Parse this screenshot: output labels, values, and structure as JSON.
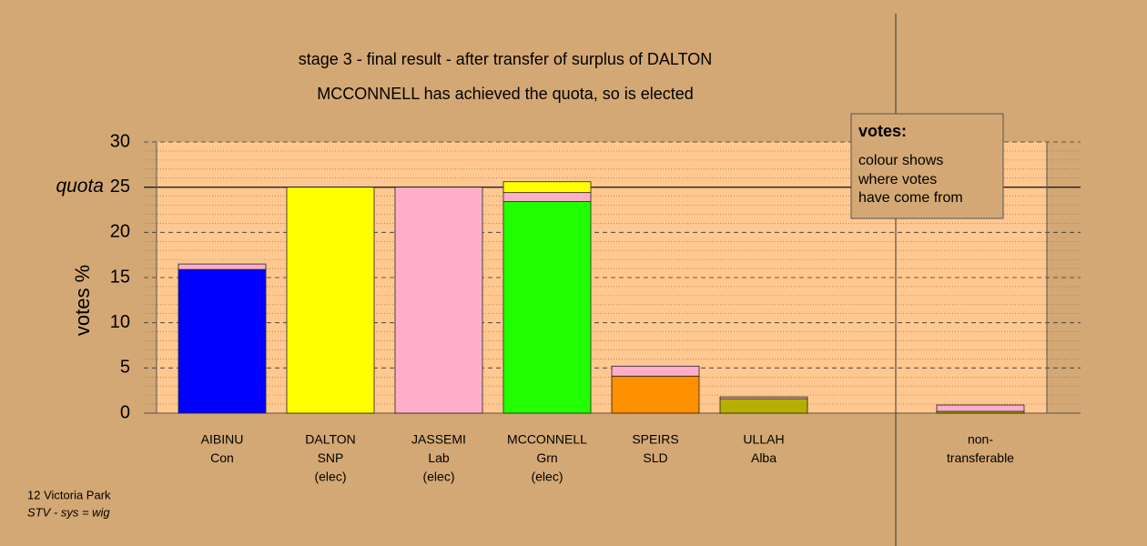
{
  "chart_data": {
    "type": "bar",
    "stacked": true,
    "title": "stage 3 - final result - after transfer of surplus of DALTON",
    "subtitle": "MCCONNELL has achieved the quota, so is elected",
    "ylabel": "votes %",
    "categories": [
      [
        "AIBINU",
        "Con"
      ],
      [
        "DALTON",
        "SNP",
        "(elec)"
      ],
      [
        "JASSEMI",
        "Lab",
        "(elec)"
      ],
      [
        "MCCONNELL",
        "Grn",
        "(elec)"
      ],
      [
        "SPEIRS",
        "SLD"
      ],
      [
        "ULLAH",
        "Alba"
      ],
      [
        "non-",
        "transferable"
      ]
    ],
    "series": [
      {
        "color": "#0000ff",
        "values": [
          15.9,
          0,
          0,
          0,
          0,
          0,
          0
        ]
      },
      {
        "color": "#22ff00",
        "values": [
          0,
          0,
          0,
          23.4,
          0,
          0,
          0
        ]
      },
      {
        "color": "#ff9000",
        "values": [
          0,
          0,
          0,
          0,
          4.1,
          0,
          0
        ]
      },
      {
        "color": "#b5b000",
        "values": [
          0,
          0,
          0,
          0,
          0,
          1.6,
          0.2
        ]
      },
      {
        "color": "#ffaec9",
        "values": [
          0.6,
          0,
          25,
          1.0,
          1.1,
          0.2,
          0.7
        ]
      },
      {
        "color": "#ffff00",
        "values": [
          0,
          25,
          0,
          1.2,
          0,
          0,
          0
        ]
      }
    ],
    "ylim": [
      0,
      30
    ],
    "yticks": [
      0,
      5,
      10,
      15,
      20,
      25,
      30
    ],
    "quota": {
      "value": 25,
      "label": "quota"
    },
    "legend": {
      "title": "votes:",
      "lines": [
        "colour shows",
        "where votes",
        "have come from"
      ]
    },
    "footer": [
      "12 Victoria Park",
      "STV - sys = wig"
    ]
  }
}
